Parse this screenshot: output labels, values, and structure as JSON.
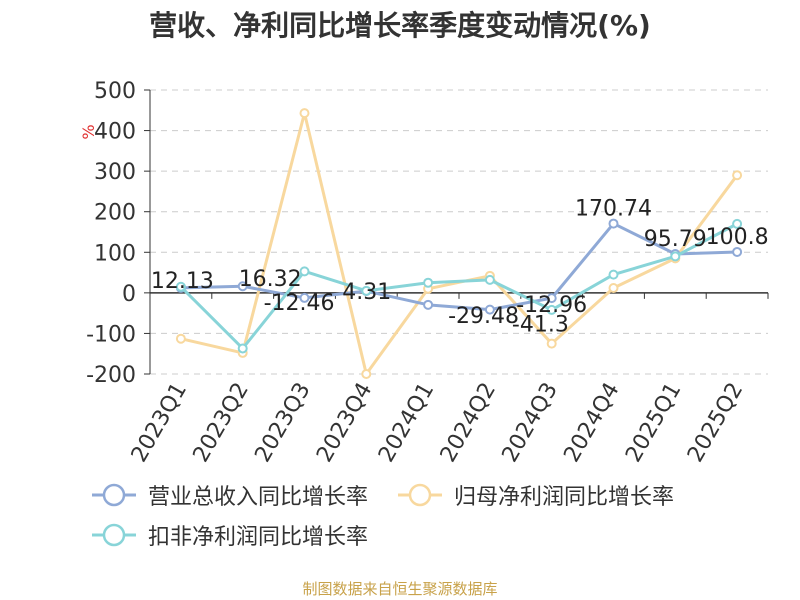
{
  "chart_data": {
    "type": "line",
    "title": "营收、净利同比增长率季度变动情况(%)",
    "ylabel": "%",
    "categories": [
      "2023Q1",
      "2023Q2",
      "2023Q3",
      "2023Q4",
      "2024Q1",
      "2024Q2",
      "2024Q3",
      "2024Q4",
      "2025Q1",
      "2025Q2"
    ],
    "ylim": [
      -200,
      500
    ],
    "yticks": [
      "500",
      "400",
      "300",
      "200",
      "100",
      "0",
      "-100",
      "-200"
    ],
    "grid": true,
    "legend_position": "bottom",
    "series": [
      {
        "name": "营业总收入同比增长率",
        "color": "#8fa9d6",
        "values": [
          12.13,
          16.32,
          -12.46,
          4.31,
          -29.48,
          -41.3,
          -12.96,
          170.74,
          95.79,
          100.8
        ],
        "labels": [
          "12.13",
          "16.32",
          "-12.46",
          "4.31",
          "-29.48",
          "-41.3",
          "-12.96",
          "170.74",
          "95.79",
          "100.8"
        ]
      },
      {
        "name": "归母净利润同比增长率",
        "color": "#f8d89e",
        "values": [
          -113,
          -148,
          443,
          -200,
          10,
          42,
          -125,
          12,
          85,
          290
        ]
      },
      {
        "name": "扣非净利润同比增长率",
        "color": "#88d4d8",
        "values": [
          15,
          -137,
          53,
          5,
          25,
          32,
          -42,
          45,
          90,
          170
        ]
      }
    ]
  },
  "source_note": "制图数据来自恒生聚源数据库"
}
